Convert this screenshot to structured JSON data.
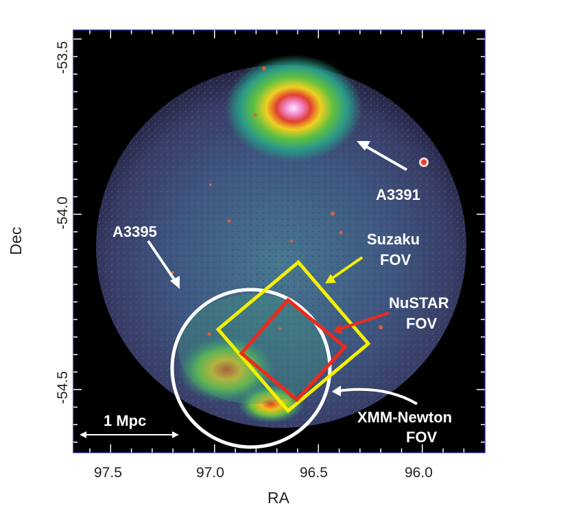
{
  "axes": {
    "x_label": "RA",
    "y_label": "Dec",
    "x_ticks": [
      "97.5",
      "97.0",
      "96.5",
      "96.0"
    ],
    "y_ticks": [
      "-53.5",
      "-54.0",
      "-54.5"
    ]
  },
  "annotations": {
    "a3391": "A3391",
    "a3395": "A3395",
    "suzaku_line1": "Suzaku",
    "suzaku_line2": "FOV",
    "nustar_line1": "NuSTAR",
    "nustar_line2": "FOV",
    "xmm_line1": "XMM-Newton",
    "xmm_line2": "FOV",
    "scale_bar": "1 Mpc"
  },
  "colors": {
    "suzaku_box": "#f5f000",
    "nustar_box": "#ee2a1a",
    "xmm_circle": "#ffffff",
    "frame": "#1a1a8c"
  }
}
